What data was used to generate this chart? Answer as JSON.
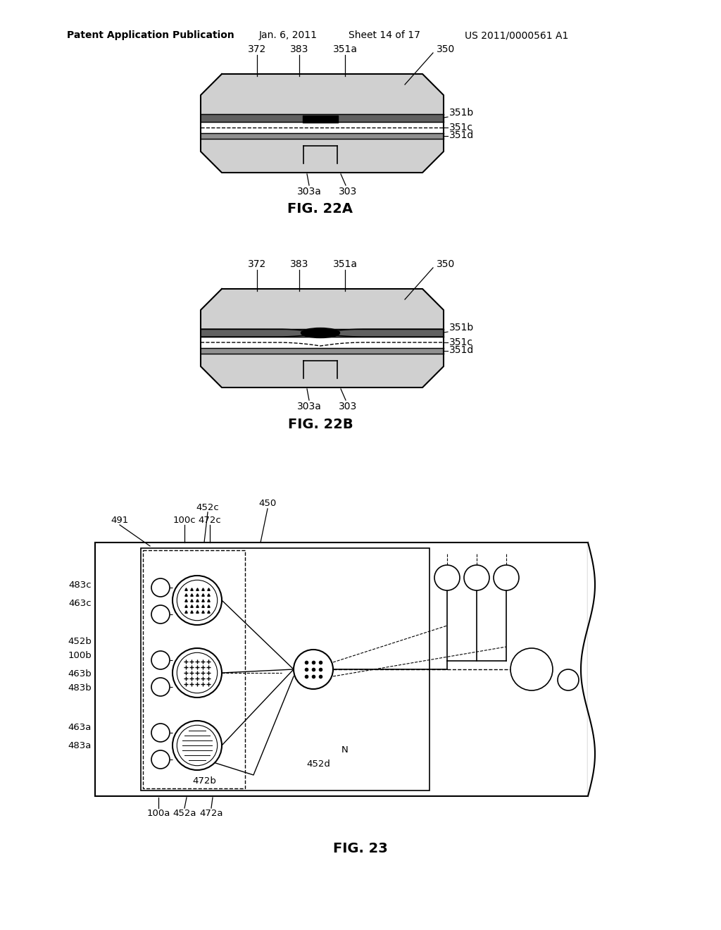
{
  "bg_color": "#ffffff",
  "header_text": "Patent Application Publication",
  "header_date": "Jan. 6, 2011",
  "header_sheet": "Sheet 14 of 17",
  "header_patent": "US 2011/0000561 A1",
  "fig22a_title": "FIG. 22A",
  "fig22b_title": "FIG. 22B",
  "fig23_title": "FIG. 23",
  "line_color": "#000000",
  "gray_fill": "#d0d0d0",
  "dark_gray": "#888888"
}
